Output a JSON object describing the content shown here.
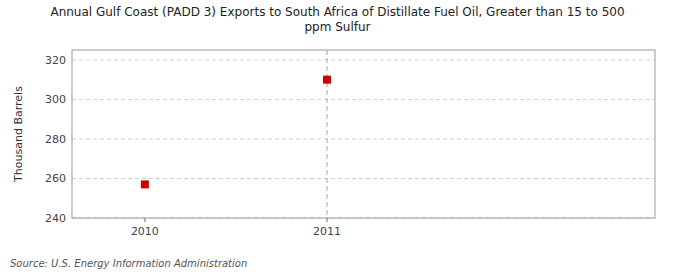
{
  "chart_data": {
    "type": "scatter",
    "title": "Annual Gulf Coast (PADD 3) Exports to South Africa of Distillate Fuel Oil, Greater than 15 to 500\nppm Sulfur",
    "y_label": "Thousand Barrels",
    "source": "Source: U.S. Energy Information Administration",
    "x": [
      2010,
      2011
    ],
    "values": [
      257,
      310
    ],
    "color": "#cc0000",
    "marker": "square",
    "xlim": [
      2009.6,
      2012.8
    ],
    "ylim": [
      240,
      325
    ],
    "xticks": [
      2010,
      2011
    ],
    "yticks": [
      240,
      260,
      280,
      300,
      320
    ],
    "vline_x": 2011,
    "grid": true
  }
}
